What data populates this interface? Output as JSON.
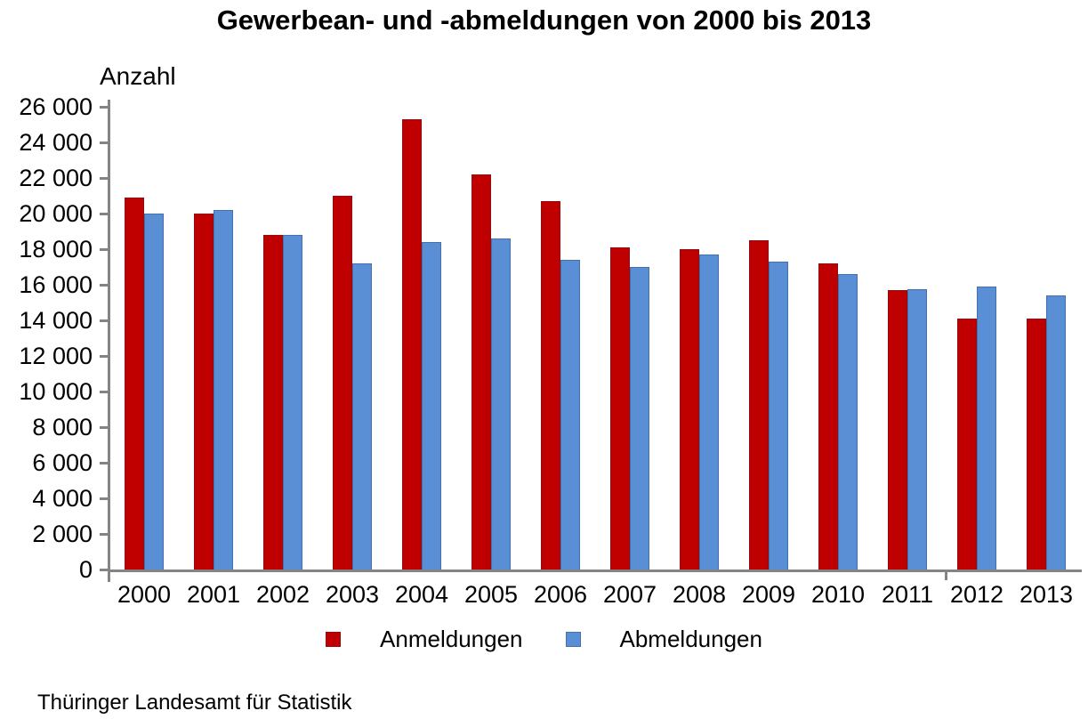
{
  "title": "Gewerbean- und -abmeldungen von 2000 bis 2013",
  "y_axis_title": "Anzahl",
  "source": "Thüringer Landesamt für Statistik",
  "colors": {
    "anmeldungen": "#C00000",
    "abmeldungen": "#5B8FD5",
    "axis": "#848484",
    "background": "#FFFFFF",
    "text": "#000000"
  },
  "legend": {
    "items": [
      {
        "label": "Anmeldungen",
        "color": "#C00000"
      },
      {
        "label": "Abmeldungen",
        "color": "#5B8FD5"
      }
    ],
    "position": "bottom"
  },
  "chart_data": {
    "type": "bar",
    "title": "Gewerbean- und -abmeldungen von 2000 bis 2013",
    "xlabel": "",
    "ylabel": "Anzahl",
    "categories": [
      "2000",
      "2001",
      "2002",
      "2003",
      "2004",
      "2005",
      "2006",
      "2007",
      "2008",
      "2009",
      "2010",
      "2011",
      "2012",
      "2013"
    ],
    "series": [
      {
        "name": "Anmeldungen",
        "color": "#C00000",
        "values": [
          20900,
          20000,
          18800,
          21000,
          25300,
          22200,
          20700,
          18100,
          18000,
          18500,
          17200,
          15700,
          14100,
          14100
        ]
      },
      {
        "name": "Abmeldungen",
        "color": "#5B8FD5",
        "values": [
          20000,
          20200,
          18800,
          17200,
          18400,
          18600,
          17400,
          17000,
          17700,
          17300,
          16600,
          15750,
          15900,
          15400
        ]
      }
    ],
    "ylim": [
      0,
      26000
    ],
    "ytick_step": 2000,
    "ytick_labels": [
      "26 000",
      "24 000",
      "22 000",
      "20 000",
      "18 000",
      "16 000",
      "14 000",
      "12 000",
      "10 000",
      "8 000",
      "6 000",
      "4 000",
      "2 000",
      "0"
    ],
    "grid": false,
    "legend_position": "bottom"
  }
}
